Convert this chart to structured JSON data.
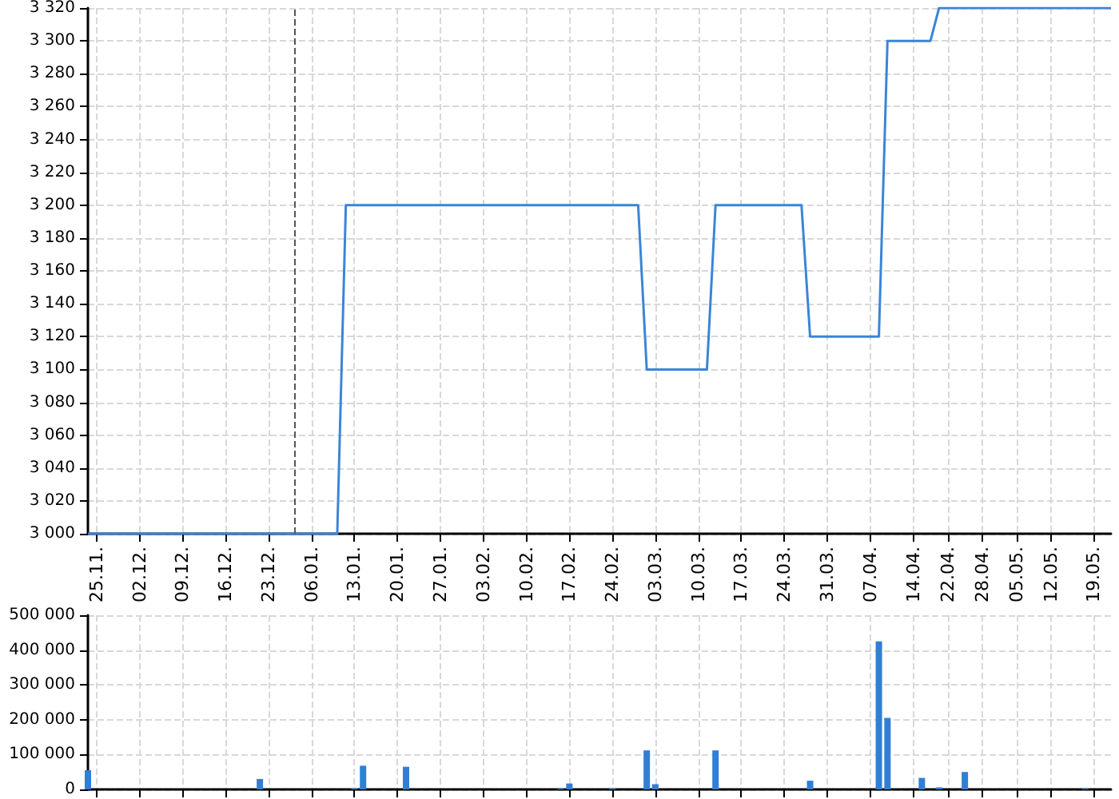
{
  "chart_data": [
    {
      "type": "line",
      "color": "#3a85d8",
      "marker": "none",
      "grid": true,
      "tick_labels": true,
      "categories": [
        null,
        "25.11.",
        null,
        null,
        null,
        null,
        "02.12.",
        null,
        null,
        null,
        null,
        "09.12.",
        null,
        null,
        null,
        null,
        "16.12.",
        null,
        null,
        null,
        null,
        "23.12.",
        null,
        null,
        null,
        null,
        "06.01.",
        null,
        null,
        null,
        null,
        "13.01.",
        null,
        null,
        null,
        null,
        "20.01.",
        null,
        null,
        null,
        null,
        "27.01.",
        null,
        null,
        null,
        null,
        "03.02.",
        null,
        null,
        null,
        null,
        "10.02.",
        null,
        null,
        null,
        null,
        "17.02.",
        null,
        null,
        null,
        null,
        "24.02.",
        null,
        null,
        null,
        null,
        "03.03.",
        null,
        null,
        null,
        null,
        "10.03.",
        null,
        null,
        null,
        null,
        "17.03.",
        null,
        null,
        null,
        null,
        "24.03.",
        null,
        null,
        null,
        null,
        "31.03.",
        null,
        null,
        null,
        null,
        "07.04.",
        null,
        null,
        null,
        null,
        "14.04.",
        null,
        null,
        null,
        "22.04.",
        null,
        null,
        null,
        "28.04.",
        null,
        null,
        null,
        "05.05.",
        null,
        null,
        null,
        "12.05.",
        null,
        null,
        null,
        null,
        "19.05.",
        null,
        null
      ],
      "values": [
        3000,
        3000,
        3000,
        3000,
        3000,
        3000,
        3000,
        3000,
        3000,
        3000,
        3000,
        3000,
        3000,
        3000,
        3000,
        3000,
        3000,
        3000,
        3000,
        3000,
        3000,
        3000,
        3000,
        3000,
        3000,
        3000,
        3000,
        3000,
        3000,
        3000,
        3200,
        3200,
        3200,
        3200,
        3200,
        3200,
        3200,
        3200,
        3200,
        3200,
        3200,
        3200,
        3200,
        3200,
        3200,
        3200,
        3200,
        3200,
        3200,
        3200,
        3200,
        3200,
        3200,
        3200,
        3200,
        3200,
        3200,
        3200,
        3200,
        3200,
        3200,
        3200,
        3200,
        3200,
        3200,
        3100,
        3100,
        3100,
        3100,
        3100,
        3100,
        3100,
        3100,
        3200,
        3200,
        3200,
        3200,
        3200,
        3200,
        3200,
        3200,
        3200,
        3200,
        3200,
        3120,
        3120,
        3120,
        3120,
        3120,
        3120,
        3120,
        3120,
        3120,
        3300,
        3300,
        3300,
        3300,
        3300,
        3300,
        3320,
        3320,
        3320,
        3320,
        3320,
        3320,
        3320,
        3320,
        3320,
        3320,
        3320,
        3320,
        3320,
        3320,
        3320,
        3320,
        3320,
        3320,
        3320,
        3320,
        3320
      ],
      "ylim": [
        3000,
        3320
      ],
      "yticks": [
        3000,
        3020,
        3040,
        3060,
        3080,
        3100,
        3120,
        3140,
        3160,
        3180,
        3200,
        3220,
        3240,
        3260,
        3280,
        3300,
        3320
      ]
    },
    {
      "type": "bar",
      "color": "#2f7fd6",
      "grid": true,
      "tick_labels": "y",
      "categories": [
        null,
        "25.11.",
        null,
        null,
        null,
        null,
        "02.12.",
        null,
        null,
        null,
        null,
        "09.12.",
        null,
        null,
        null,
        null,
        "16.12.",
        null,
        null,
        null,
        null,
        "23.12.",
        null,
        null,
        null,
        null,
        "06.01.",
        null,
        null,
        null,
        null,
        "13.01.",
        null,
        null,
        null,
        null,
        "20.01.",
        null,
        null,
        null,
        null,
        "27.01.",
        null,
        null,
        null,
        null,
        "03.02.",
        null,
        null,
        null,
        null,
        "10.02.",
        null,
        null,
        null,
        null,
        "17.02.",
        null,
        null,
        null,
        null,
        "24.02.",
        null,
        null,
        null,
        null,
        "03.03.",
        null,
        null,
        null,
        null,
        "10.03.",
        null,
        null,
        null,
        null,
        "17.03.",
        null,
        null,
        null,
        null,
        "24.03.",
        null,
        null,
        null,
        null,
        "31.03.",
        null,
        null,
        null,
        null,
        "07.04.",
        null,
        null,
        null,
        null,
        "14.04.",
        null,
        null,
        null,
        "22.04.",
        null,
        null,
        null,
        "28.04.",
        null,
        null,
        null,
        "05.05.",
        null,
        null,
        null,
        "12.05.",
        null,
        null,
        null,
        null,
        "19.05.",
        null,
        null
      ],
      "values": [
        55000,
        null,
        null,
        null,
        null,
        null,
        null,
        null,
        null,
        null,
        null,
        null,
        null,
        null,
        null,
        null,
        null,
        null,
        null,
        null,
        30000,
        null,
        null,
        null,
        null,
        null,
        null,
        null,
        null,
        null,
        null,
        3000,
        68000,
        null,
        null,
        null,
        null,
        65000,
        null,
        null,
        null,
        null,
        null,
        null,
        null,
        null,
        null,
        null,
        null,
        null,
        null,
        null,
        null,
        null,
        null,
        3000,
        17000,
        null,
        null,
        null,
        null,
        3000,
        null,
        null,
        null,
        112000,
        15000,
        null,
        null,
        null,
        null,
        null,
        null,
        112000,
        null,
        null,
        null,
        null,
        null,
        null,
        null,
        null,
        null,
        null,
        25000,
        null,
        null,
        null,
        null,
        null,
        null,
        null,
        425000,
        205000,
        null,
        null,
        null,
        33000,
        null,
        6000,
        null,
        null,
        50000,
        null,
        null,
        null,
        null,
        null,
        null,
        null,
        null,
        null,
        null,
        null,
        null,
        null,
        2000,
        null,
        null,
        null
      ],
      "ylim": [
        0,
        500000
      ],
      "yticks": [
        0,
        100000,
        200000,
        300000,
        400000,
        500000
      ]
    }
  ]
}
